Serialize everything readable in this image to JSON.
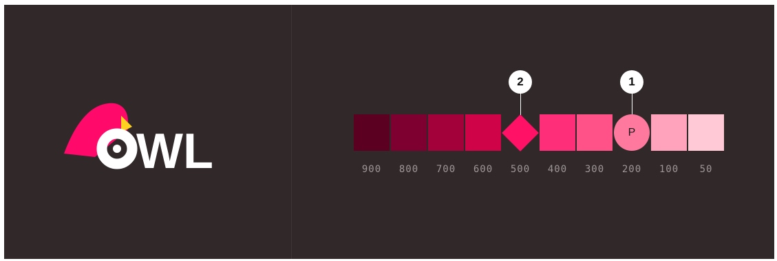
{
  "logo": {
    "text": "OWL",
    "colors": {
      "bird": "#ff0a6b",
      "beak": "#ffd21f",
      "text": "#ffffff"
    }
  },
  "palette": {
    "swatches": [
      {
        "label": "900",
        "color": "#5c0021"
      },
      {
        "label": "800",
        "color": "#7d0030"
      },
      {
        "label": "700",
        "color": "#a30139"
      },
      {
        "label": "600",
        "color": "#cf0347"
      },
      {
        "label": "500",
        "color": "#ff1166",
        "marker": "diamond"
      },
      {
        "label": "400",
        "color": "#ff2e78"
      },
      {
        "label": "300",
        "color": "#ff5289"
      },
      {
        "label": "200",
        "color": "#ff799f",
        "marker": "circle",
        "text": "P"
      },
      {
        "label": "100",
        "color": "#ffa3bc"
      },
      {
        "label": "50",
        "color": "#ffcad6"
      }
    ],
    "callouts": [
      {
        "label": "2",
        "target": "500"
      },
      {
        "label": "1",
        "target": "200"
      }
    ]
  }
}
